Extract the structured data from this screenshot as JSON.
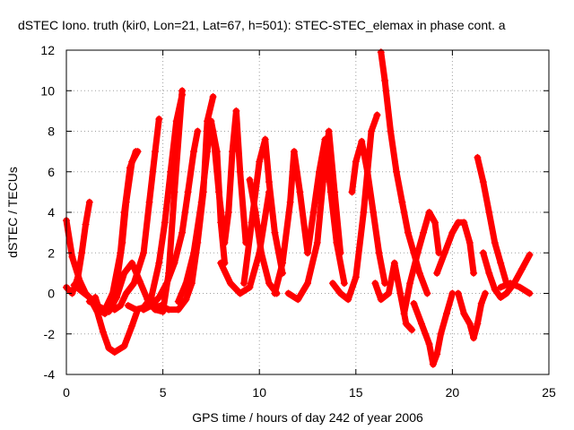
{
  "chart_data": {
    "type": "scatter",
    "title": "dSTEC Iono. truth (kir0, Lon=21, Lat=67, h=501): STEC-STEC_elemax in phase cont. a",
    "xlabel": "GPS time / hours of day 242 of year 2006",
    "ylabel": "dSTEC  / TECUs",
    "xlim": [
      0,
      25
    ],
    "ylim": [
      -4,
      12
    ],
    "xticks": [
      0,
      5,
      10,
      15,
      20,
      25
    ],
    "yticks": [
      -4,
      -2,
      0,
      2,
      4,
      6,
      8,
      10,
      12
    ],
    "grid": true,
    "marker": "+",
    "series_color": "#ff0000",
    "series": [
      {
        "x": [
          0.0,
          0.3,
          0.7,
          1.0,
          1.3,
          1.5
        ],
        "y": [
          3.6,
          1.8,
          0.6,
          0.0,
          -0.3,
          -0.4
        ]
      },
      {
        "x": [
          0.0,
          0.3,
          0.6,
          0.8,
          1.0,
          1.2
        ],
        "y": [
          0.3,
          0.0,
          0.8,
          2.0,
          3.4,
          4.5
        ]
      },
      {
        "x": [
          0.4,
          0.8,
          1.2,
          1.6,
          1.9,
          2.2,
          2.5,
          3.0,
          3.4,
          3.7
        ],
        "y": [
          0.4,
          0.1,
          -0.2,
          -0.9,
          -1.9,
          -2.7,
          -2.9,
          -2.6,
          -1.6,
          -0.8
        ]
      },
      {
        "x": [
          1.2,
          1.6,
          2.0,
          2.4,
          2.8,
          3.0,
          3.3,
          3.6
        ],
        "y": [
          -0.4,
          -0.6,
          -0.8,
          0.0,
          2.0,
          4.0,
          6.2,
          7.0
        ]
      },
      {
        "x": [
          1.5,
          1.7,
          2.0,
          2.3,
          2.6,
          2.9,
          3.1,
          3.4,
          3.7
        ],
        "y": [
          -0.2,
          -0.8,
          -1.0,
          -0.6,
          0.5,
          2.5,
          4.5,
          6.5,
          7.0
        ]
      },
      {
        "x": [
          2.5,
          2.8,
          3.1,
          3.5,
          4.0,
          4.3,
          4.6,
          4.8
        ],
        "y": [
          -0.8,
          -0.6,
          0.0,
          0.5,
          2.0,
          4.5,
          7.0,
          8.6
        ]
      },
      {
        "x": [
          2.2,
          2.6,
          3.0,
          3.4,
          3.8,
          4.2,
          4.6,
          5.0,
          5.3,
          5.6,
          6.0
        ],
        "y": [
          -0.9,
          -0.2,
          1.0,
          1.5,
          0.6,
          -0.3,
          -0.8,
          -0.9,
          1.0,
          5.0,
          10.0
        ]
      },
      {
        "x": [
          3.2,
          3.6,
          4.0,
          4.4,
          4.8,
          5.1,
          5.4,
          5.7,
          6.0
        ],
        "y": [
          -0.6,
          -0.8,
          -0.7,
          -0.2,
          1.5,
          3.5,
          6.0,
          8.5,
          9.8
        ]
      },
      {
        "x": [
          4.0,
          4.4,
          4.8,
          5.2,
          5.6,
          6.0,
          6.3,
          6.6,
          6.8
        ],
        "y": [
          -0.8,
          -0.6,
          -0.2,
          0.5,
          1.5,
          3.0,
          5.0,
          7.0,
          8.0
        ]
      },
      {
        "x": [
          4.5,
          4.9,
          5.3,
          5.8,
          6.2,
          6.5,
          6.8,
          7.1,
          7.3,
          7.6
        ],
        "y": [
          -0.7,
          -0.6,
          -0.8,
          -0.8,
          -0.3,
          0.5,
          2.5,
          5.0,
          8.5,
          9.7
        ]
      },
      {
        "x": [
          5.8,
          6.2,
          6.6,
          7.0,
          7.3,
          7.5,
          7.8,
          8.0,
          8.2
        ],
        "y": [
          -0.4,
          0.5,
          2.0,
          4.5,
          7.0,
          8.5,
          7.0,
          3.5,
          1.5
        ]
      },
      {
        "x": [
          7.6,
          7.9,
          8.2,
          8.4,
          8.6,
          8.8,
          9.0,
          9.3
        ],
        "y": [
          8.0,
          5.0,
          2.5,
          4.0,
          7.0,
          9.0,
          6.0,
          2.5
        ]
      },
      {
        "x": [
          8.0,
          8.5,
          9.0,
          9.5,
          10.0,
          10.5
        ],
        "y": [
          1.5,
          0.5,
          0.0,
          0.3,
          2.0,
          5.0
        ]
      },
      {
        "x": [
          9.2,
          9.6,
          10.0,
          10.3,
          10.5,
          10.8,
          11.2
        ],
        "y": [
          0.5,
          3.5,
          6.5,
          7.6,
          5.5,
          3.0,
          1.0
        ]
      },
      {
        "x": [
          9.5,
          9.8,
          10.1,
          10.5,
          10.9
        ],
        "y": [
          5.6,
          4.0,
          2.0,
          0.5,
          0.0
        ]
      },
      {
        "x": [
          10.8,
          11.2,
          11.6,
          11.8,
          12.1,
          12.5
        ],
        "y": [
          0.0,
          1.5,
          4.5,
          7.0,
          5.0,
          2.0
        ]
      },
      {
        "x": [
          11.5,
          12.0,
          12.5,
          13.0,
          13.3,
          13.6,
          13.9,
          14.2
        ],
        "y": [
          0.0,
          -0.3,
          0.5,
          2.5,
          5.5,
          8.0,
          5.0,
          2.0
        ]
      },
      {
        "x": [
          12.5,
          12.8,
          13.1,
          13.4,
          13.7,
          14.0,
          14.4
        ],
        "y": [
          2.0,
          4.0,
          6.0,
          7.6,
          5.0,
          2.5,
          0.5
        ]
      },
      {
        "x": [
          13.8,
          14.2,
          14.6,
          15.0,
          15.4,
          15.8,
          16.1
        ],
        "y": [
          0.5,
          0.0,
          -0.3,
          0.8,
          4.0,
          8.0,
          8.8
        ]
      },
      {
        "x": [
          14.8,
          15.0,
          15.3,
          15.6,
          15.9,
          16.2,
          16.5
        ],
        "y": [
          5.0,
          6.5,
          7.5,
          6.0,
          4.0,
          2.0,
          0.5
        ]
      },
      {
        "x": [
          16.3,
          16.5,
          16.8,
          17.1,
          17.4,
          17.7,
          18.0,
          18.3,
          18.7
        ],
        "y": [
          11.9,
          10.5,
          8.0,
          6.0,
          4.5,
          3.0,
          2.0,
          1.0,
          0.0
        ]
      },
      {
        "x": [
          16.0,
          16.3,
          16.7,
          17.0,
          17.3,
          17.6,
          17.9
        ],
        "y": [
          0.5,
          -0.3,
          0.0,
          1.5,
          0.0,
          -1.5,
          -1.8
        ]
      },
      {
        "x": [
          17.5,
          17.8,
          18.2,
          18.5,
          18.8,
          19.1,
          19.3
        ],
        "y": [
          -1.0,
          0.5,
          2.0,
          3.0,
          4.0,
          3.5,
          2.0
        ]
      },
      {
        "x": [
          18.0,
          18.4,
          18.8,
          19.0,
          19.2,
          19.4,
          19.7,
          20.0
        ],
        "y": [
          -0.5,
          -1.5,
          -2.5,
          -3.5,
          -3.0,
          -2.0,
          -1.0,
          0.0
        ]
      },
      {
        "x": [
          19.2,
          19.6,
          20.0,
          20.3,
          20.6,
          20.9,
          21.1
        ],
        "y": [
          1.0,
          2.0,
          3.0,
          3.5,
          3.5,
          2.5,
          1.0
        ]
      },
      {
        "x": [
          20.3,
          20.6,
          20.9,
          21.1,
          21.3,
          21.5,
          21.7
        ],
        "y": [
          0.0,
          -1.0,
          -1.5,
          -2.2,
          -1.5,
          -0.5,
          0.0
        ]
      },
      {
        "x": [
          21.3,
          21.6,
          21.9,
          22.2,
          22.5,
          22.8
        ],
        "y": [
          6.7,
          5.5,
          4.0,
          2.5,
          1.5,
          0.5
        ]
      },
      {
        "x": [
          21.6,
          21.9,
          22.2,
          22.5,
          22.8,
          23.2,
          23.6,
          24.0
        ],
        "y": [
          2.0,
          1.0,
          0.2,
          -0.2,
          0.0,
          0.5,
          1.2,
          1.9
        ]
      },
      {
        "x": [
          22.5,
          23.0,
          23.5,
          24.0
        ],
        "y": [
          0.3,
          0.5,
          0.3,
          0.0
        ]
      }
    ]
  }
}
